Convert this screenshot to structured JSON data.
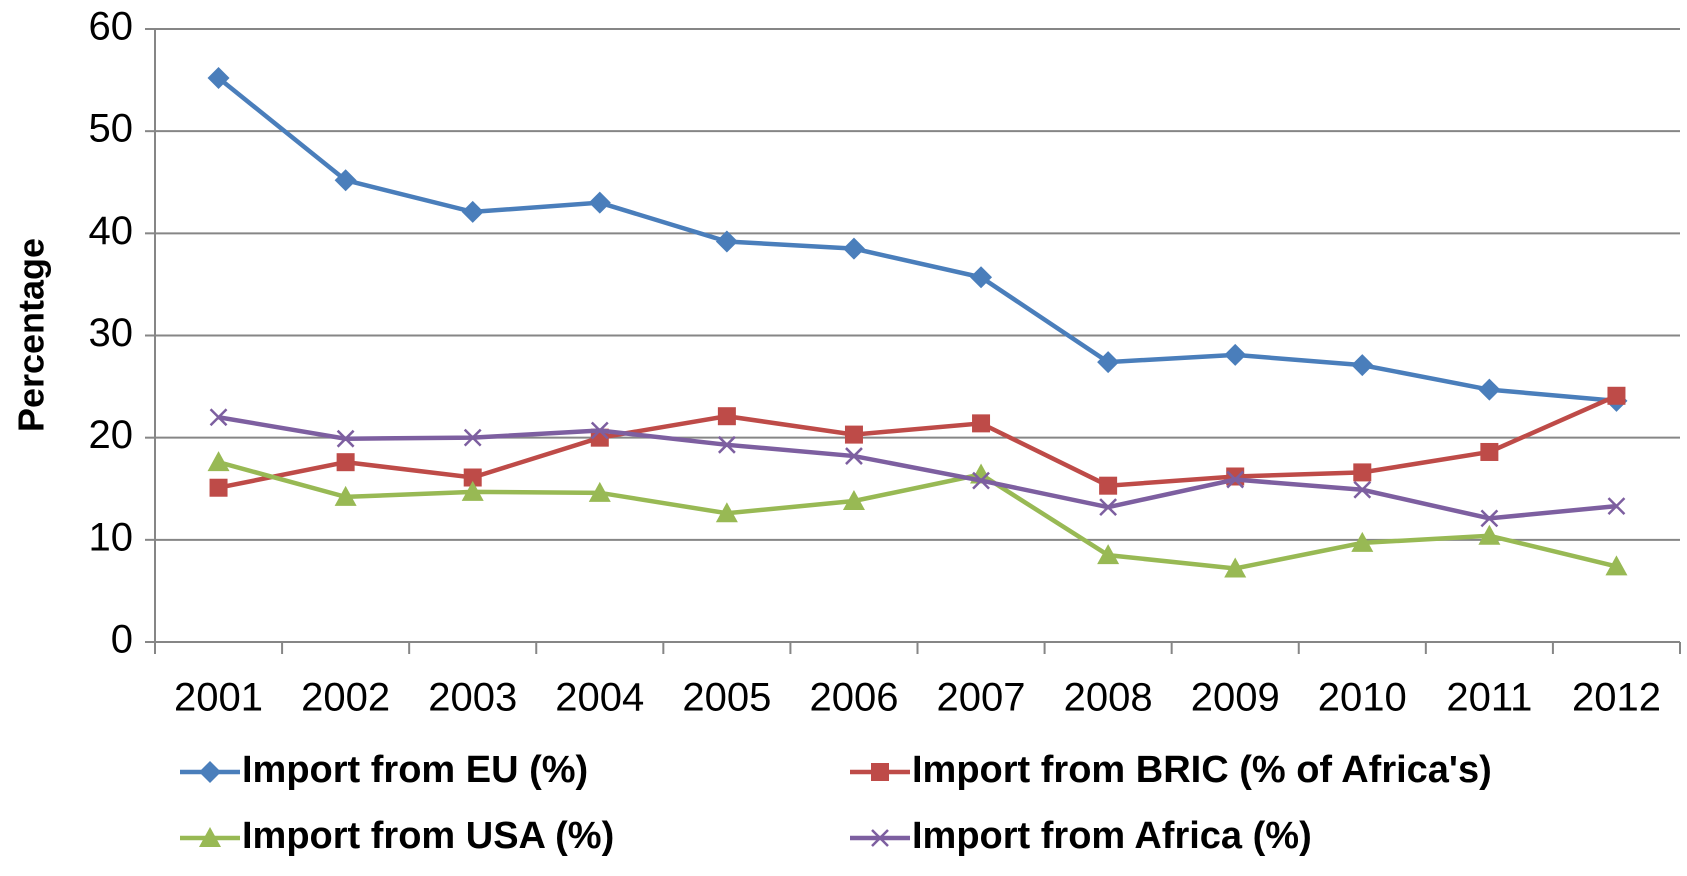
{
  "chart_data": {
    "type": "line",
    "y_label": "Percentage",
    "categories": [
      "2001",
      "2002",
      "2003",
      "2004",
      "2005",
      "2006",
      "2007",
      "2008",
      "2009",
      "2010",
      "2011",
      "2012"
    ],
    "series": [
      {
        "name": "Import from EU (%)",
        "color": "#4a7ebb",
        "marker": "diamond",
        "values": [
          55.2,
          45.2,
          42.1,
          43,
          39.2,
          38.5,
          35.7,
          27.4,
          28.1,
          27.1,
          24.7,
          23.6
        ]
      },
      {
        "name": "Import from BRIC (% of Africa's)",
        "color": "#be4b48",
        "marker": "square",
        "values": [
          15.1,
          17.6,
          16.1,
          20,
          22.1,
          20.3,
          21.4,
          15.3,
          16.2,
          16.6,
          18.6,
          24.1
        ]
      },
      {
        "name": "Import from USA (%)",
        "color": "#98b954",
        "marker": "triangle",
        "values": [
          17.6,
          14.2,
          14.7,
          14.6,
          12.6,
          13.8,
          16.4,
          8.5,
          7.2,
          9.7,
          10.4,
          7.4
        ]
      },
      {
        "name": "Import from Africa (%)",
        "color": "#7d5fa0",
        "marker": "x",
        "values": [
          22,
          19.9,
          20,
          20.7,
          19.3,
          18.2,
          15.8,
          13.2,
          15.9,
          14.9,
          12.1,
          13.3
        ]
      }
    ],
    "ylim": [
      0,
      60
    ],
    "yticks": [
      0,
      10,
      20,
      30,
      40,
      50,
      60
    ],
    "grid": true
  }
}
